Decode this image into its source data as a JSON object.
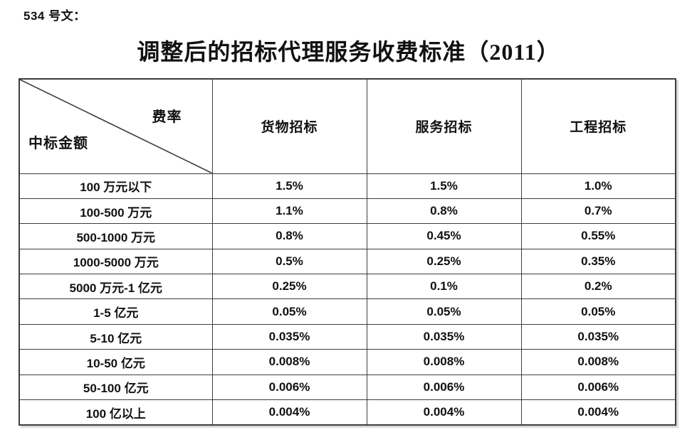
{
  "doc_number": "534 号文：",
  "title": "调整后的招标代理服务收费标准（2011）",
  "table": {
    "corner": {
      "top_right": "费率",
      "bottom_left": "中标金额"
    },
    "columns": [
      "货物招标",
      "服务招标",
      "工程招标"
    ],
    "rows": [
      {
        "label": "100 万元以下",
        "values": [
          "1.5%",
          "1.5%",
          "1.0%"
        ]
      },
      {
        "label": "100-500 万元",
        "values": [
          "1.1%",
          "0.8%",
          "0.7%"
        ]
      },
      {
        "label": "500-1000 万元",
        "values": [
          "0.8%",
          "0.45%",
          "0.55%"
        ]
      },
      {
        "label": "1000-5000 万元",
        "values": [
          "0.5%",
          "0.25%",
          "0.35%"
        ]
      },
      {
        "label": "5000 万元-1 亿元",
        "values": [
          "0.25%",
          "0.1%",
          "0.2%"
        ]
      },
      {
        "label": "1-5 亿元",
        "values": [
          "0.05%",
          "0.05%",
          "0.05%"
        ]
      },
      {
        "label": "5-10 亿元",
        "values": [
          "0.035%",
          "0.035%",
          "0.035%"
        ]
      },
      {
        "label": "10-50 亿元",
        "values": [
          "0.008%",
          "0.008%",
          "0.008%"
        ]
      },
      {
        "label": "50-100 亿元",
        "values": [
          "0.006%",
          "0.006%",
          "0.006%"
        ]
      },
      {
        "label": "100 亿以上",
        "values": [
          "0.004%",
          "0.004%",
          "0.004%"
        ]
      }
    ]
  },
  "colors": {
    "border": "#3d3d3d",
    "text": "#111111",
    "background": "#ffffff"
  }
}
